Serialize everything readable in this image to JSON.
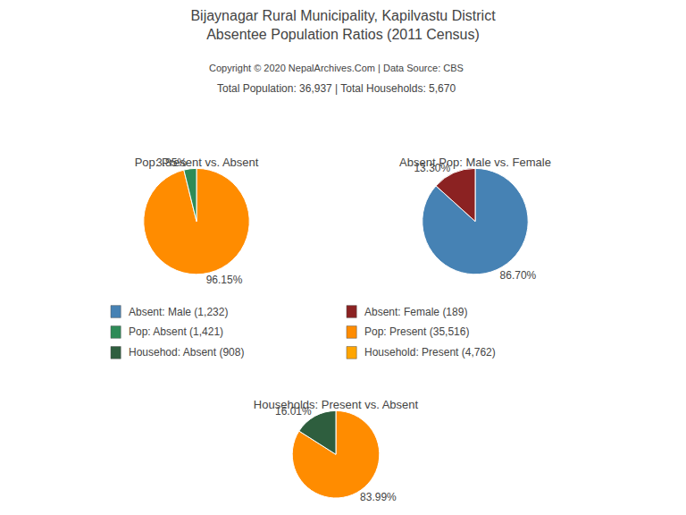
{
  "title": [
    "Bijaynagar Rural Municipality, Kapilvastu District",
    "Absentee Population Ratios (2011 Census)"
  ],
  "annotations": [
    "Copyright © 2020 NepalArchives.Com | Data Source: CBS",
    "Total Population: 36,937 | Total Households: 5,670"
  ],
  "series": [
    {
      "name": "Absent: Male (1,232)",
      "color": "#4682B4"
    },
    {
      "name": "Absent: Female (189)",
      "color": "#8B2222"
    },
    {
      "name": "Pop: Absent (1,421)",
      "color": "#2E8B57"
    },
    {
      "name": "Pop: Present (35,516)",
      "color": "#FF8C00"
    },
    {
      "name": "Househod: Absent (908)",
      "color": "#2E5E3E"
    },
    {
      "name": "Household: Present (4,762)",
      "color": "#FFA500"
    }
  ],
  "chart_data": [
    {
      "type": "pie",
      "title": "Pop: Present vs. Absent",
      "values": [
        96.15,
        3.85
      ],
      "value_labels": [
        "96.15%",
        "3.85%"
      ],
      "colors": [
        "#FF8C00",
        "#2E8B57"
      ],
      "data_labels": true
    },
    {
      "type": "pie",
      "title": "Absent Pop: Male vs. Female",
      "values": [
        86.7,
        13.3
      ],
      "value_labels": [
        "86.70%",
        "13.30%"
      ],
      "colors": [
        "#4682B4",
        "#8B2222"
      ],
      "data_labels": true
    },
    {
      "type": "pie",
      "title": "Households: Present vs. Absent",
      "values": [
        83.99,
        16.01
      ],
      "value_labels": [
        "83.99%",
        "16.01%"
      ],
      "colors": [
        "#FF8C00",
        "#2E5E3E"
      ],
      "data_labels": true
    }
  ]
}
